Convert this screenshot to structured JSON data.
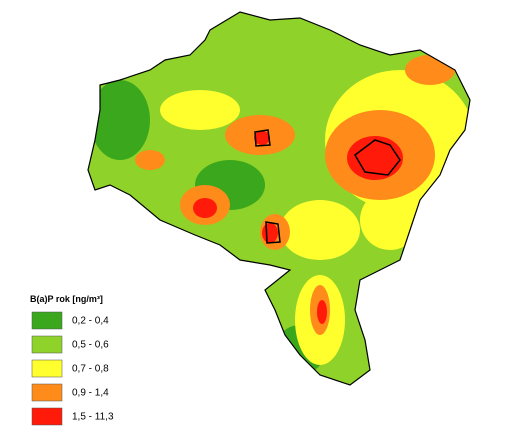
{
  "legend": {
    "title": "B(a)P rok [ng/m³]",
    "items": [
      {
        "label": "0,2 - 0,4",
        "color": "#3aa71c"
      },
      {
        "label": "0,5 - 0,6",
        "color": "#8fd22a"
      },
      {
        "label": "0,7 - 0,8",
        "color": "#ffff2e"
      },
      {
        "label": "0,9 - 1,4",
        "color": "#ff8c1a"
      },
      {
        "label": "1,5 - 11,3",
        "color": "#ff1a0a"
      }
    ]
  }
}
